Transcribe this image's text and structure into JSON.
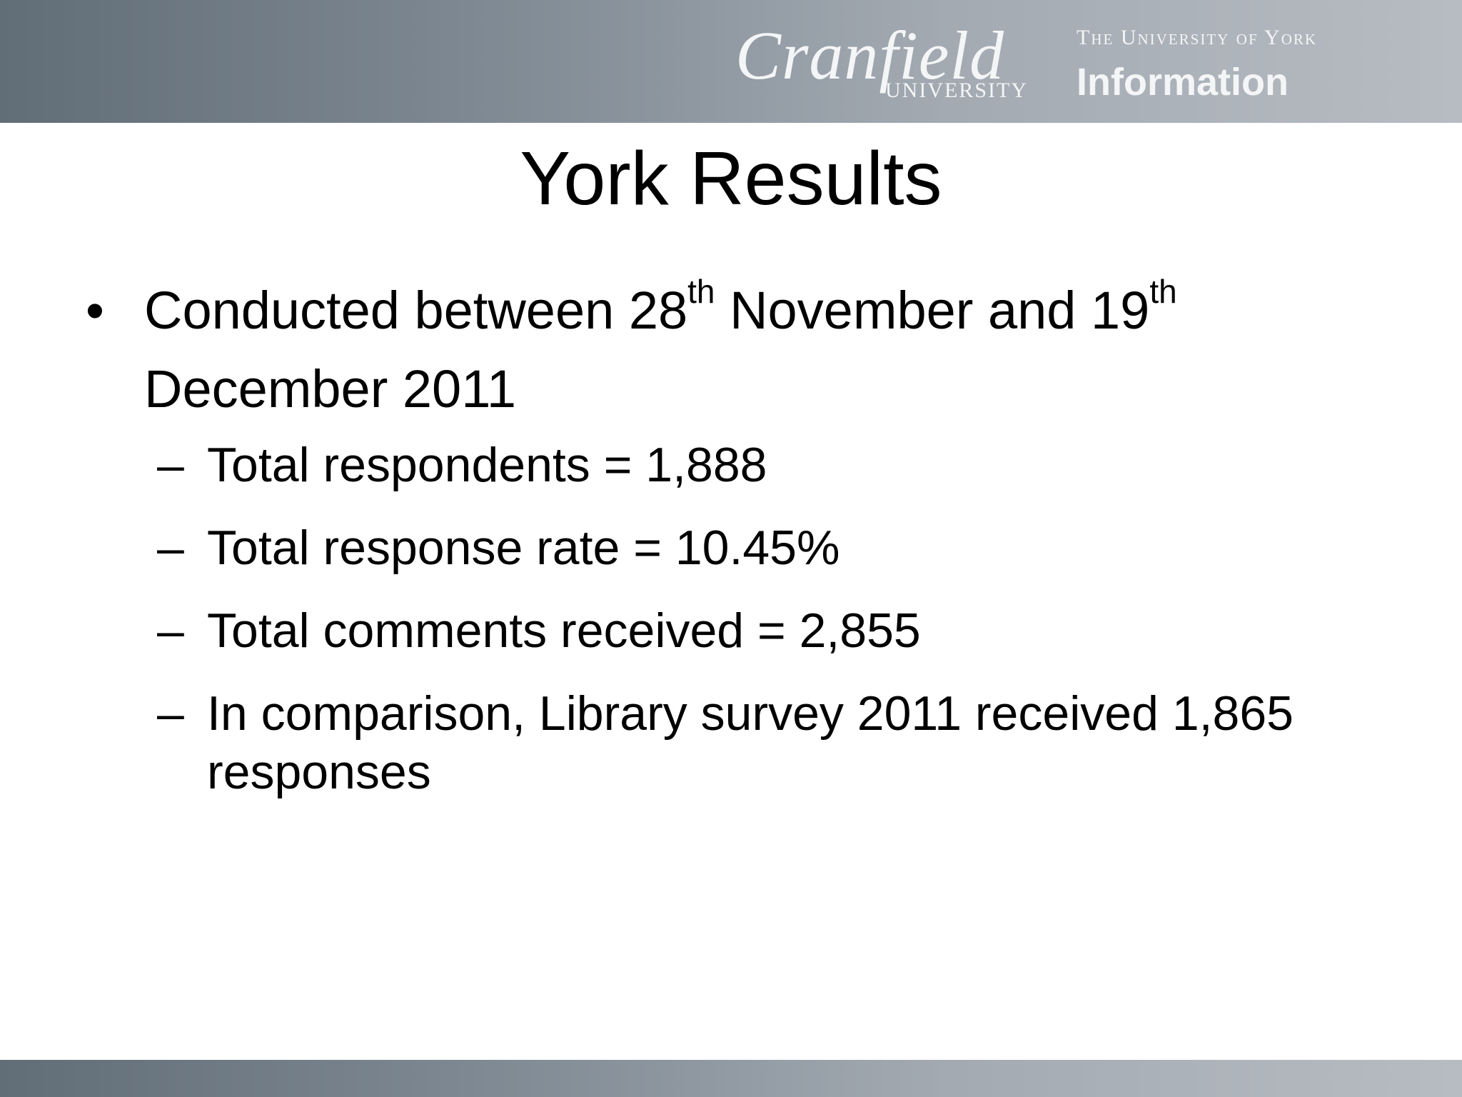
{
  "header": {
    "cranfield_logo": {
      "name": "Cranfield",
      "sub": "UNIVERSITY"
    },
    "york_logo": {
      "line1": "The University of York",
      "line2": "Information"
    }
  },
  "slide": {
    "title": "York Results",
    "bullet": {
      "part1": "Conducted between 28",
      "sup1": "th",
      "part2": " November and 19",
      "sup2": "th",
      "part3": " December 2011"
    },
    "sub_bullets": [
      "Total respondents = 1,888",
      "Total response rate = 10.45%",
      "Total comments received = 2,855",
      "In comparison, Library survey 2011 received 1,865 responses"
    ]
  },
  "colors": {
    "band_dark": "#616d77",
    "band_light": "#b7bcc2",
    "text": "#000000"
  }
}
